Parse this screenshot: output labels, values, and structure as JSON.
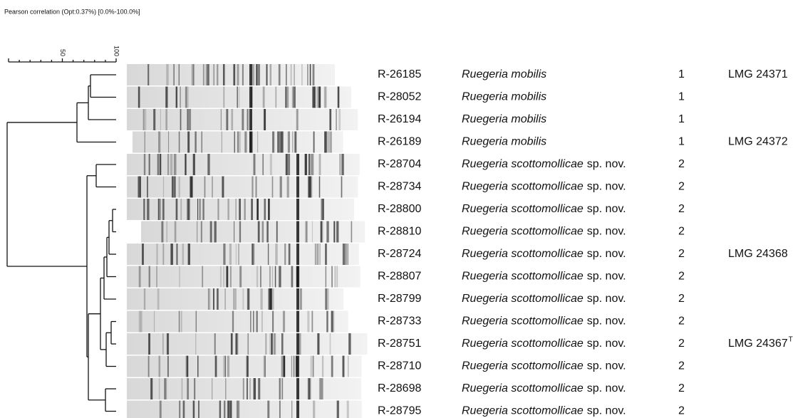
{
  "header": {
    "title": "Pearson correlation (Opt:0.37%) [0.0%-100.0%]"
  },
  "scale": {
    "labels": [
      "50",
      "100"
    ]
  },
  "rows": [
    {
      "id": "R-26185",
      "species": "Ruegeria mobilis",
      "group": "1",
      "strain": "LMG 24371"
    },
    {
      "id": "R-28052",
      "species": "Ruegeria mobilis",
      "group": "1"
    },
    {
      "id": "R-26194",
      "species": "Ruegeria mobilis",
      "group": "1"
    },
    {
      "id": "R-26189",
      "species": "Ruegeria mobilis",
      "group": "1",
      "strain": "LMG 24372"
    },
    {
      "id": "R-28704",
      "species": "Ruegeria scottomollicae",
      "suffix": "sp. nov.",
      "group": "2"
    },
    {
      "id": "R-28734",
      "species": "Ruegeria scottomollicae",
      "suffix": "sp. nov.",
      "group": "2"
    },
    {
      "id": "R-28800",
      "species": "Ruegeria scottomollicae",
      "suffix": "sp. nov.",
      "group": "2"
    },
    {
      "id": "R-28810",
      "species": "Ruegeria scottomollicae",
      "suffix": "sp. nov.",
      "group": "2"
    },
    {
      "id": "R-28724",
      "species": "Ruegeria scottomollicae",
      "suffix": "sp. nov.",
      "group": "2",
      "strain": "LMG 24368"
    },
    {
      "id": "R-28807",
      "species": "Ruegeria scottomollicae",
      "suffix": "sp. nov.",
      "group": "2"
    },
    {
      "id": "R-28799",
      "species": "Ruegeria scottomollicae",
      "suffix": "sp. nov.",
      "group": "2"
    },
    {
      "id": "R-28733",
      "species": "Ruegeria scottomollicae",
      "suffix": "sp. nov.",
      "group": "2"
    },
    {
      "id": "R-28751",
      "species": "Ruegeria scottomollicae",
      "suffix": "sp. nov.",
      "group": "2",
      "strain": "LMG 24367",
      "superscript": "T"
    },
    {
      "id": "R-28710",
      "species": "Ruegeria scottomollicae",
      "suffix": "sp. nov.",
      "group": "2"
    },
    {
      "id": "R-28698",
      "species": "Ruegeria scottomollicae",
      "suffix": "sp. nov.",
      "group": "2"
    },
    {
      "id": "R-28795",
      "species": "Ruegeria scottomollicae",
      "suffix": "sp. nov.",
      "group": "2"
    }
  ]
}
